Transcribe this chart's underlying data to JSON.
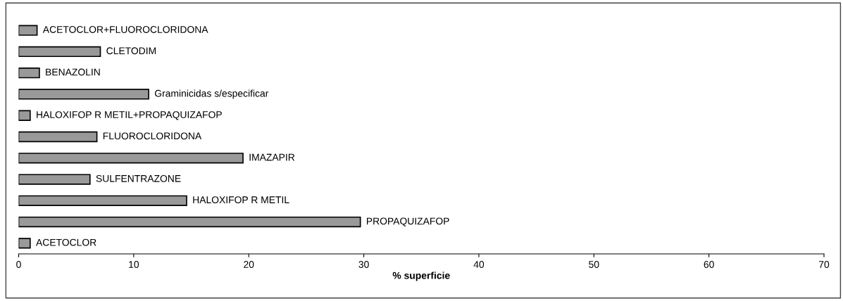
{
  "chart_data": {
    "type": "bar",
    "orientation": "horizontal",
    "xlabel": "% superficie",
    "categories": [
      "ACETOCLOR+FLUOROCLORIDONA",
      "CLETODIM",
      "BENAZOLIN",
      "Graminicidas s/especificar",
      "HALOXIFOP R METIL+PROPAQUIZAFOP",
      "FLUOROCLORIDONA",
      "IMAZAPIR",
      "SULFENTRAZONE",
      "HALOXIFOP R METIL",
      "PROPAQUIZAFOP",
      "ACETOCLOR"
    ],
    "values": [
      1.6,
      7.1,
      1.8,
      11.3,
      1.0,
      6.8,
      19.5,
      6.2,
      14.6,
      29.7,
      1.0
    ],
    "color": "#999999",
    "xlim": [
      0,
      70
    ],
    "xticks": [
      0,
      10,
      20,
      30,
      40,
      50,
      60,
      70
    ],
    "grid": false,
    "legend": false
  }
}
